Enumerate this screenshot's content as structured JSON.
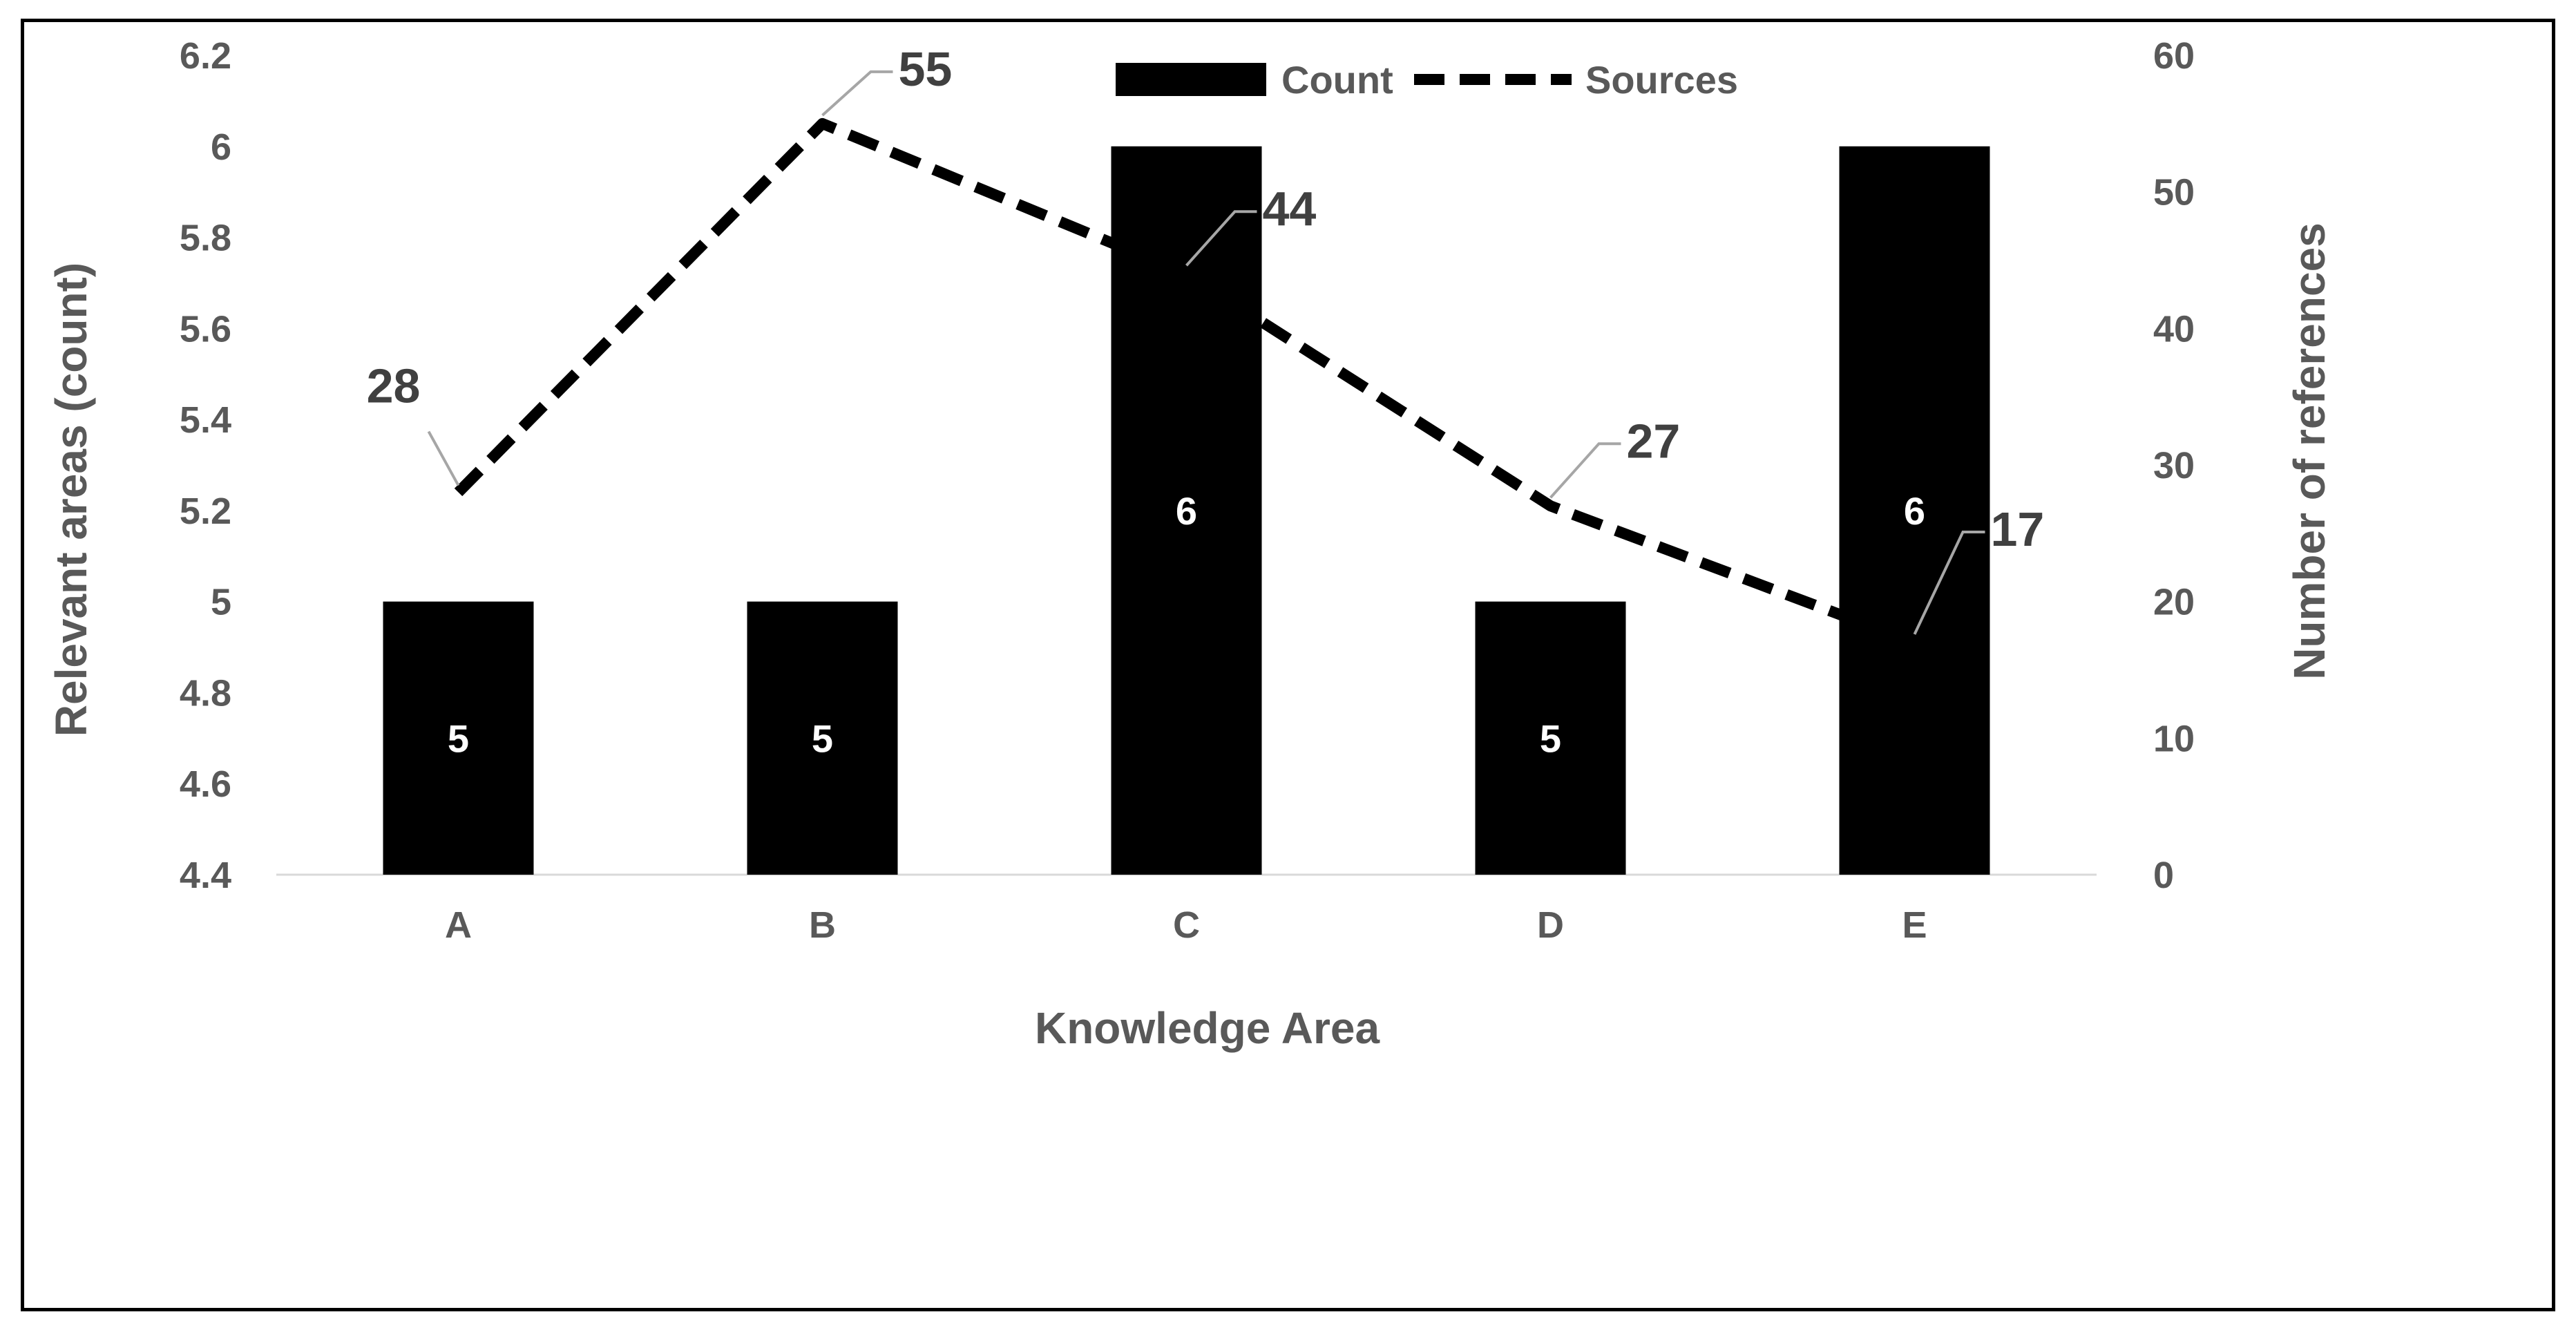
{
  "chart_data": {
    "type": "bar",
    "title": "",
    "xlabel": "Knowledge Area",
    "ylabel": "Relevant areas (count)",
    "y2label": "Number of references",
    "categories": [
      "A",
      "B",
      "C",
      "D",
      "E"
    ],
    "ylim": [
      4.4,
      6.2
    ],
    "y_ticks": [
      "4.4",
      "4.6",
      "4.8",
      "5",
      "5.2",
      "5.4",
      "5.6",
      "5.8",
      "6",
      "6.2"
    ],
    "y2lim": [
      0,
      60
    ],
    "y2_ticks": [
      "0",
      "10",
      "20",
      "30",
      "40",
      "50",
      "60"
    ],
    "legend_position": "top",
    "grid": false,
    "series": [
      {
        "name": "Count",
        "type": "bar",
        "axis": "left",
        "values": [
          5,
          5,
          6,
          5,
          6
        ],
        "color": "#000000",
        "label_color": "#ffffff"
      },
      {
        "name": "Sources",
        "type": "line",
        "style": "dashed",
        "axis": "right",
        "values": [
          28,
          55,
          44,
          27,
          17
        ],
        "color": "#000000",
        "label_color": "#404040"
      }
    ],
    "axis_text_color": "#595959",
    "leader_line_color": "#a6a6a6"
  }
}
